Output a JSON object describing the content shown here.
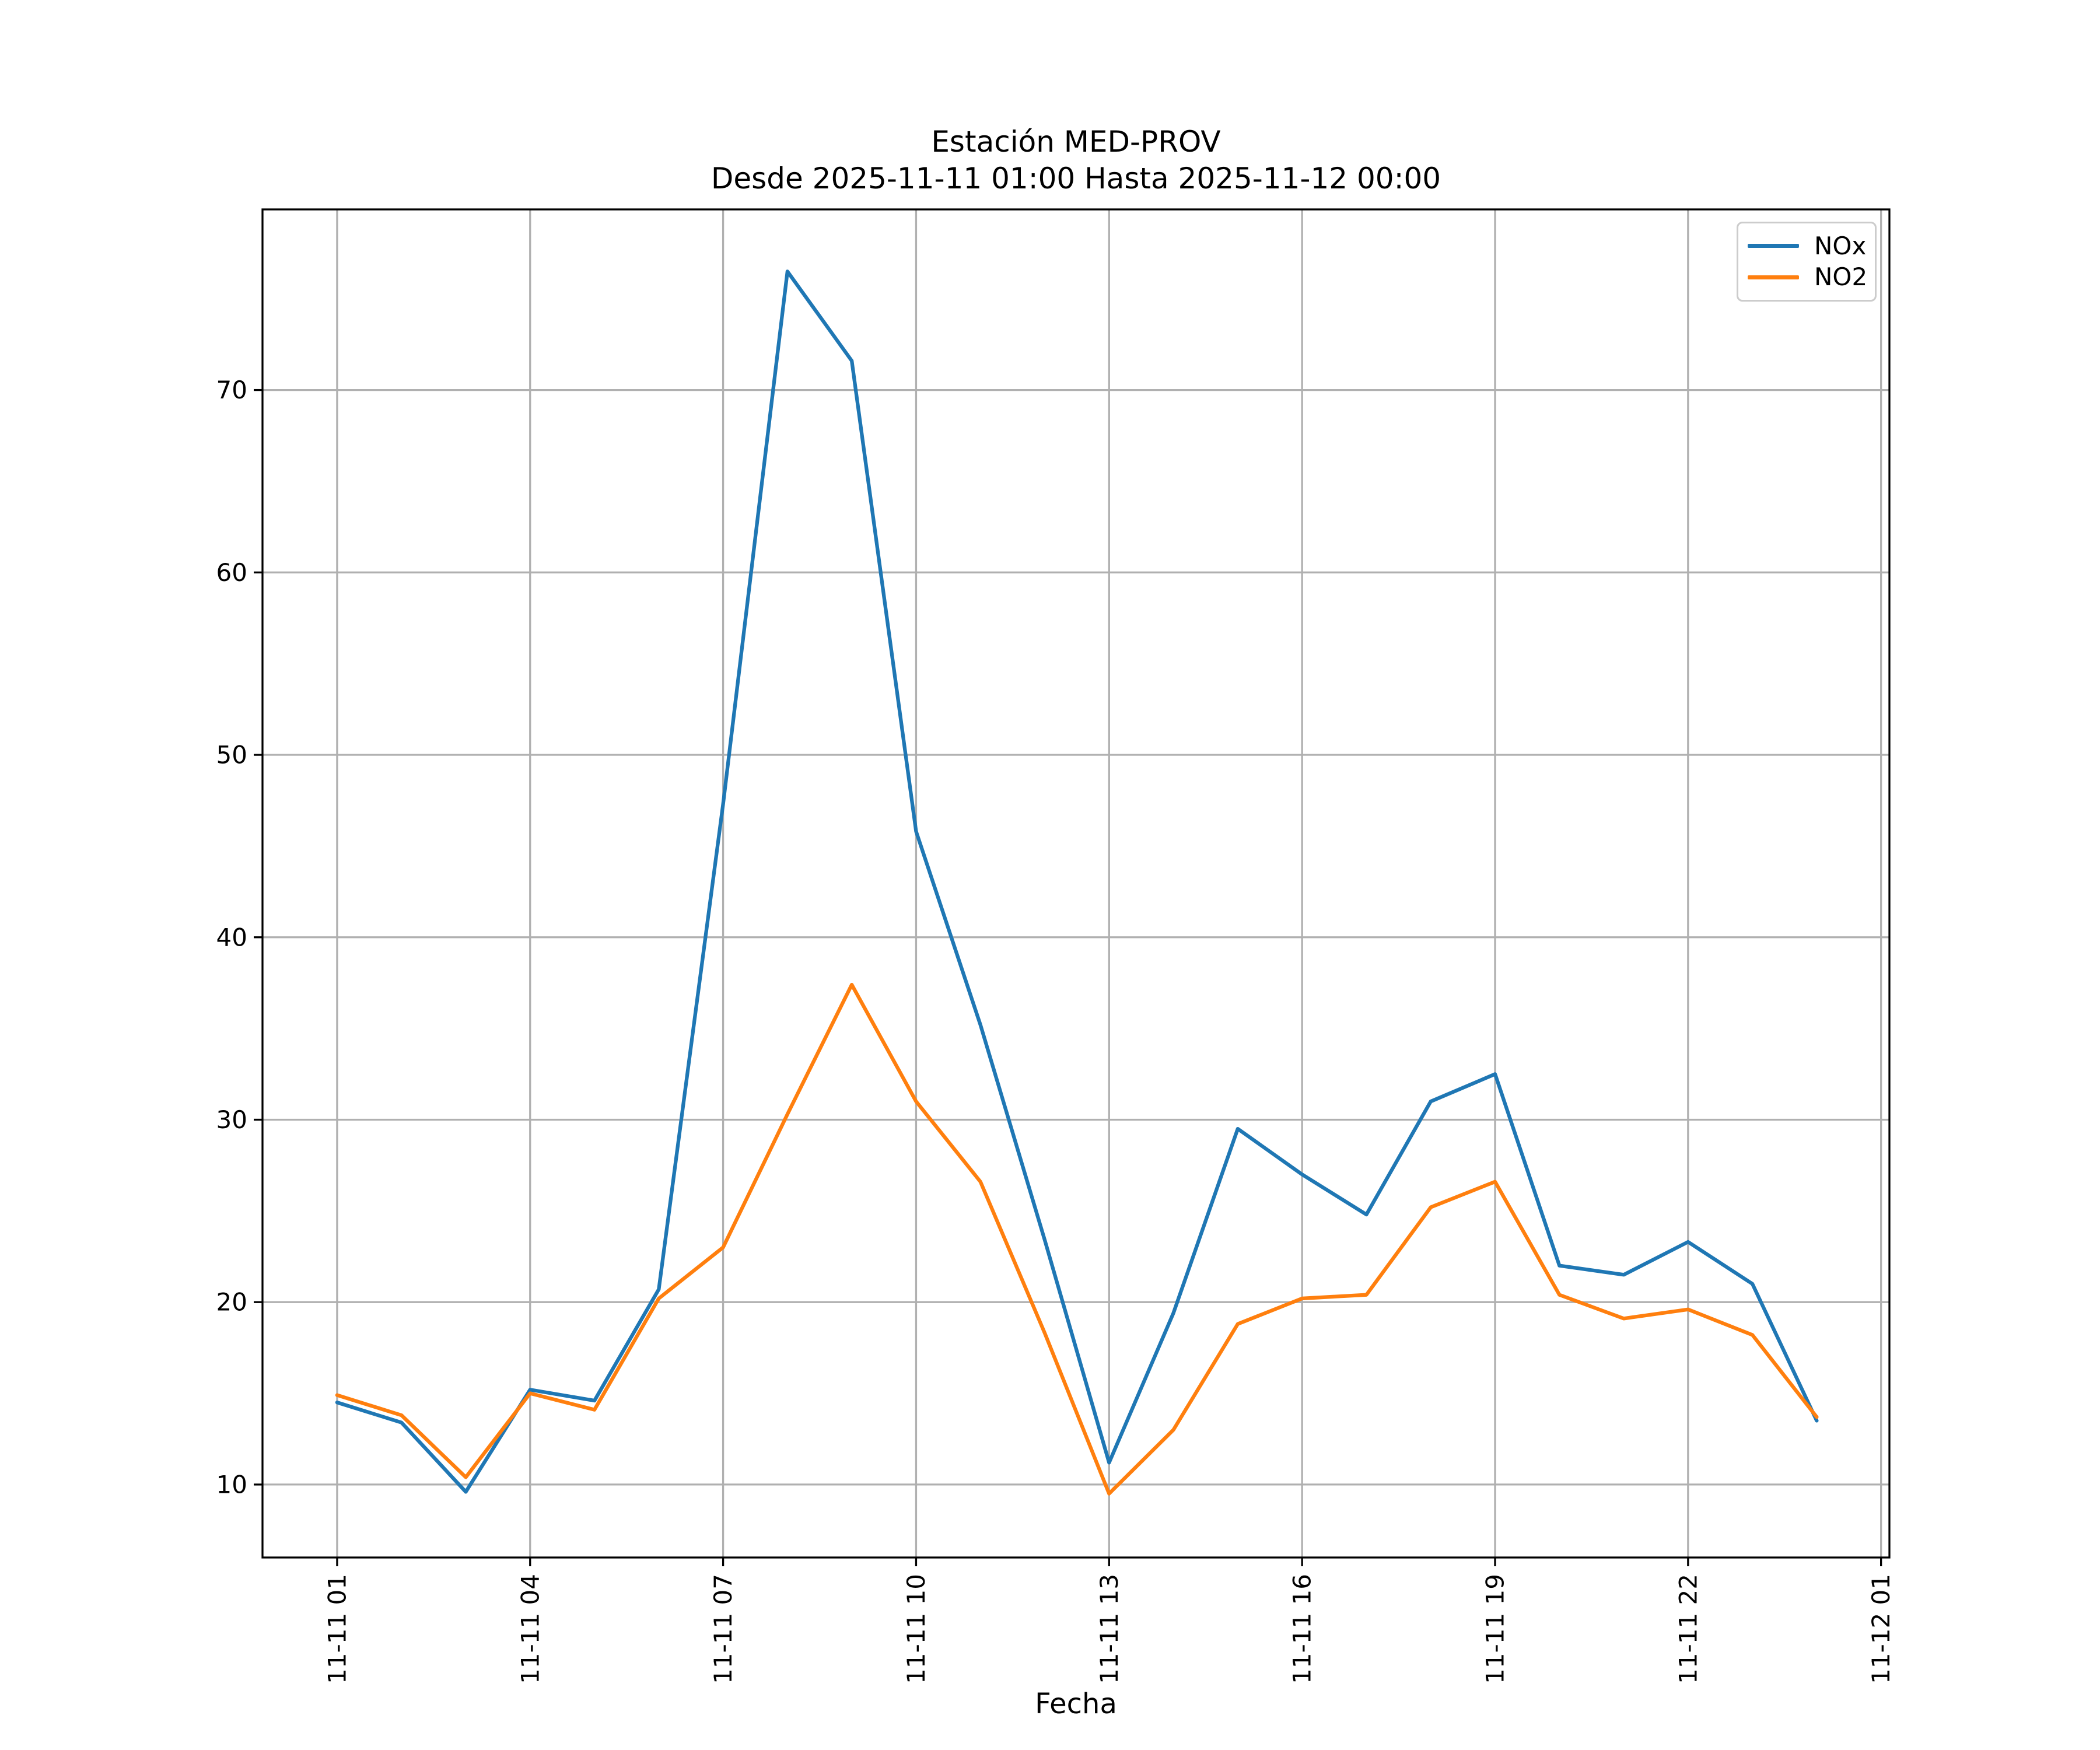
{
  "page": {
    "background": "#ffffff"
  },
  "chart_data": {
    "type": "line",
    "title": "Estación MED-PROV",
    "subtitle": "Desde 2025-11-11 01:00 Hasta 2025-11-12 00:00",
    "xlabel": "Fecha",
    "ylabel": "",
    "x_hours": [
      1,
      2,
      3,
      4,
      5,
      6,
      7,
      8,
      9,
      10,
      11,
      12,
      13,
      14,
      15,
      16,
      17,
      18,
      19,
      20,
      21,
      22,
      23,
      24
    ],
    "series": [
      {
        "name": "NOx",
        "color": "#1f77b4",
        "values": [
          14.5,
          13.4,
          9.6,
          15.2,
          14.6,
          20.7,
          47.3,
          76.5,
          71.6,
          45.8,
          35.2,
          23.4,
          11.2,
          19.4,
          29.5,
          27.0,
          24.8,
          31.0,
          32.5,
          22.0,
          21.5,
          23.3,
          21.0,
          13.5
        ]
      },
      {
        "name": "NO2",
        "color": "#ff7f0e",
        "values": [
          14.9,
          13.8,
          10.4,
          15.0,
          14.1,
          20.2,
          23.0,
          30.3,
          37.4,
          31.0,
          26.6,
          18.3,
          9.5,
          13.0,
          18.8,
          20.2,
          20.4,
          25.2,
          26.6,
          20.4,
          19.1,
          19.6,
          18.2,
          13.7
        ]
      }
    ],
    "xticks": {
      "positions": [
        1,
        4,
        7,
        10,
        13,
        16,
        19,
        22,
        25
      ],
      "labels": [
        "11-11 01",
        "11-11 04",
        "11-11 07",
        "11-11 10",
        "11-11 13",
        "11-11 16",
        "11-11 19",
        "11-11 22",
        "11-12 01"
      ]
    },
    "yticks": [
      10,
      20,
      30,
      40,
      50,
      60,
      70
    ],
    "xlim": [
      -0.16,
      25.13
    ],
    "ylim": [
      6.0,
      79.9
    ],
    "grid": true,
    "grid_color": "#b0b0b0",
    "axis_color": "#000000",
    "tick_label_size": 42,
    "legend": {
      "position": "upper right"
    }
  }
}
